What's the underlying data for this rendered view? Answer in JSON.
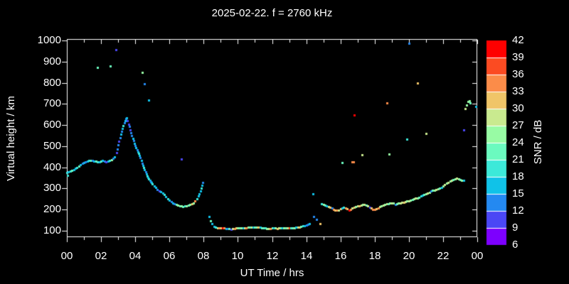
{
  "colors": {
    "background": "#000000",
    "foreground": "#ffffff"
  },
  "chart_data": {
    "type": "scatter",
    "title": "2025-02-22. f = 2760 kHz",
    "grid": false,
    "x_axis": {
      "label": "UT Time / hrs",
      "tick_labels": [
        "00",
        "02",
        "04",
        "06",
        "08",
        "10",
        "12",
        "14",
        "16",
        "18",
        "20",
        "22",
        "00"
      ],
      "tick_hours": [
        0,
        2,
        4,
        6,
        8,
        10,
        12,
        14,
        16,
        18,
        20,
        22,
        24
      ],
      "minor_tick_hours": [
        1,
        3,
        5,
        7,
        9,
        11,
        13,
        15,
        17,
        19,
        21,
        23
      ],
      "range_hours": [
        0,
        24
      ]
    },
    "y_axis": {
      "label": "Virtual height / km",
      "tick_values": [
        1000,
        900,
        800,
        700,
        600,
        500,
        400,
        300,
        200,
        100
      ],
      "range_km": [
        100,
        1000
      ]
    },
    "colorbar": {
      "label": "SNR / dB",
      "min_db": 6,
      "max_db": 42,
      "step_db": 3,
      "tick_labels": [
        42,
        39,
        36,
        33,
        30,
        27,
        24,
        21,
        18,
        15,
        12,
        9,
        6
      ],
      "colors_low_to_high": [
        "#7d00fe",
        "#4b47f5",
        "#2489f1",
        "#10c2e8",
        "#3ce9d9",
        "#6bfabf",
        "#98fba4",
        "#c9ea8f",
        "#f0c568",
        "#fb8c49",
        "#fb4b22",
        "#fe0000"
      ]
    },
    "point_fields": [
      "ut_hours",
      "virtual_height_km",
      "snr_db"
    ],
    "points": [
      [
        0.0,
        375,
        19
      ],
      [
        0.05,
        362,
        19
      ],
      [
        0.1,
        378,
        16
      ],
      [
        0.2,
        382,
        19
      ],
      [
        0.3,
        386,
        22
      ],
      [
        0.4,
        390,
        16
      ],
      [
        0.5,
        395,
        16
      ],
      [
        0.6,
        400,
        19
      ],
      [
        0.7,
        406,
        22
      ],
      [
        0.8,
        412,
        16
      ],
      [
        0.9,
        418,
        13
      ],
      [
        1.0,
        424,
        16
      ],
      [
        1.1,
        427,
        13
      ],
      [
        1.2,
        429,
        16
      ],
      [
        1.3,
        431,
        19
      ],
      [
        1.4,
        432,
        22
      ],
      [
        1.5,
        432,
        13
      ],
      [
        1.6,
        430,
        16
      ],
      [
        1.7,
        428,
        22
      ],
      [
        1.8,
        427,
        19
      ],
      [
        1.9,
        427,
        16
      ],
      [
        2.0,
        429,
        22
      ],
      [
        2.1,
        431,
        16
      ],
      [
        2.2,
        428,
        13
      ],
      [
        2.3,
        425,
        10
      ],
      [
        2.4,
        428,
        16
      ],
      [
        2.5,
        432,
        19
      ],
      [
        2.6,
        437,
        25
      ],
      [
        2.7,
        443,
        13
      ],
      [
        2.8,
        450,
        16
      ],
      [
        2.9,
        470,
        10
      ],
      [
        2.95,
        487,
        13
      ],
      [
        3.0,
        505,
        13
      ],
      [
        3.05,
        522,
        10
      ],
      [
        3.1,
        540,
        13
      ],
      [
        3.15,
        556,
        16
      ],
      [
        3.2,
        570,
        13
      ],
      [
        3.25,
        584,
        16
      ],
      [
        3.3,
        598,
        19
      ],
      [
        3.35,
        612,
        13
      ],
      [
        3.4,
        622,
        16
      ],
      [
        3.45,
        630,
        13
      ],
      [
        3.5,
        634,
        16
      ],
      [
        3.55,
        620,
        10
      ],
      [
        3.6,
        605,
        10
      ],
      [
        3.65,
        592,
        13
      ],
      [
        3.7,
        578,
        10
      ],
      [
        3.75,
        565,
        13
      ],
      [
        3.8,
        550,
        13
      ],
      [
        3.85,
        538,
        16
      ],
      [
        3.9,
        525,
        13
      ],
      [
        3.95,
        513,
        16
      ],
      [
        4.0,
        502,
        13
      ],
      [
        4.05,
        492,
        16
      ],
      [
        4.1,
        483,
        13
      ],
      [
        4.15,
        474,
        16
      ],
      [
        4.2,
        465,
        19
      ],
      [
        4.25,
        455,
        16
      ],
      [
        4.3,
        445,
        13
      ],
      [
        4.35,
        432,
        16
      ],
      [
        4.4,
        420,
        13
      ],
      [
        4.45,
        410,
        16
      ],
      [
        4.5,
        400,
        19
      ],
      [
        4.55,
        390,
        16
      ],
      [
        4.6,
        380,
        13
      ],
      [
        4.65,
        370,
        16
      ],
      [
        4.7,
        360,
        19
      ],
      [
        4.75,
        352,
        16
      ],
      [
        4.8,
        345,
        19
      ],
      [
        4.85,
        338,
        16
      ],
      [
        4.9,
        332,
        13
      ],
      [
        4.95,
        327,
        16
      ],
      [
        5.0,
        322,
        19
      ],
      [
        5.1,
        313,
        16
      ],
      [
        5.2,
        304,
        16
      ],
      [
        5.3,
        296,
        13
      ],
      [
        5.4,
        289,
        10
      ],
      [
        5.5,
        284,
        16
      ],
      [
        5.6,
        277,
        16
      ],
      [
        5.7,
        270,
        19
      ],
      [
        5.8,
        261,
        16
      ],
      [
        5.9,
        252,
        19
      ],
      [
        6.0,
        245,
        16
      ],
      [
        6.1,
        238,
        13
      ],
      [
        6.2,
        232,
        16
      ],
      [
        6.3,
        228,
        13
      ],
      [
        6.4,
        224,
        22
      ],
      [
        6.5,
        221,
        25
      ],
      [
        6.6,
        218,
        22
      ],
      [
        6.7,
        216,
        25
      ],
      [
        6.8,
        215,
        22
      ],
      [
        6.9,
        217,
        19
      ],
      [
        7.0,
        219,
        25
      ],
      [
        7.1,
        221,
        22
      ],
      [
        7.2,
        224,
        25
      ],
      [
        7.3,
        228,
        31
      ],
      [
        7.4,
        232,
        25
      ],
      [
        7.5,
        242,
        34
      ],
      [
        7.6,
        252,
        19
      ],
      [
        7.7,
        263,
        16
      ],
      [
        7.75,
        274,
        16
      ],
      [
        7.8,
        287,
        16
      ],
      [
        7.85,
        300,
        19
      ],
      [
        7.9,
        315,
        16
      ],
      [
        7.95,
        330,
        13
      ],
      [
        8.3,
        168,
        16
      ],
      [
        8.4,
        148,
        22
      ],
      [
        8.5,
        132,
        16
      ],
      [
        8.6,
        120,
        16
      ],
      [
        8.7,
        117,
        19
      ],
      [
        8.8,
        115,
        28
      ],
      [
        8.9,
        114,
        34
      ],
      [
        9.0,
        113,
        31
      ],
      [
        9.1,
        112,
        40
      ],
      [
        9.2,
        113,
        34
      ],
      [
        9.3,
        111,
        16
      ],
      [
        9.4,
        110,
        13
      ],
      [
        9.5,
        109,
        22
      ],
      [
        9.6,
        108,
        10
      ],
      [
        9.7,
        109,
        28
      ],
      [
        9.8,
        110,
        34
      ],
      [
        9.9,
        112,
        31
      ],
      [
        10.0,
        113,
        25
      ],
      [
        10.1,
        114,
        22
      ],
      [
        10.2,
        113,
        25
      ],
      [
        10.3,
        112,
        16
      ],
      [
        10.4,
        113,
        28
      ],
      [
        10.5,
        115,
        34
      ],
      [
        10.6,
        116,
        25
      ],
      [
        10.7,
        117,
        22
      ],
      [
        10.8,
        118,
        28
      ],
      [
        10.9,
        117,
        16
      ],
      [
        11.0,
        116,
        22
      ],
      [
        11.1,
        117,
        25
      ],
      [
        11.2,
        118,
        31
      ],
      [
        11.3,
        116,
        16
      ],
      [
        11.4,
        114,
        22
      ],
      [
        11.5,
        113,
        22
      ],
      [
        11.6,
        112,
        19
      ],
      [
        11.7,
        111,
        25
      ],
      [
        11.8,
        110,
        28
      ],
      [
        11.9,
        111,
        34
      ],
      [
        12.0,
        112,
        22
      ],
      [
        12.1,
        113,
        16
      ],
      [
        12.2,
        112,
        25
      ],
      [
        12.3,
        111,
        31
      ],
      [
        12.4,
        112,
        28
      ],
      [
        12.5,
        113,
        22
      ],
      [
        12.6,
        112,
        16
      ],
      [
        12.7,
        113,
        25
      ],
      [
        12.8,
        114,
        22
      ],
      [
        12.9,
        113,
        28
      ],
      [
        13.0,
        112,
        37
      ],
      [
        13.1,
        113,
        19
      ],
      [
        13.2,
        114,
        22
      ],
      [
        13.3,
        115,
        25
      ],
      [
        13.4,
        116,
        16
      ],
      [
        13.5,
        117,
        28
      ],
      [
        13.6,
        118,
        31
      ],
      [
        13.7,
        120,
        22
      ],
      [
        13.8,
        122,
        19
      ],
      [
        13.9,
        124,
        16
      ],
      [
        14.0,
        126,
        13
      ],
      [
        14.1,
        130,
        13
      ],
      [
        14.2,
        134,
        16
      ],
      [
        14.4,
        276,
        16
      ],
      [
        14.45,
        167,
        13
      ],
      [
        14.6,
        154,
        13
      ],
      [
        14.8,
        133,
        31
      ],
      [
        14.9,
        228,
        19
      ],
      [
        15.0,
        225,
        25
      ],
      [
        15.1,
        221,
        22
      ],
      [
        15.2,
        218,
        16
      ],
      [
        15.3,
        214,
        28
      ],
      [
        15.4,
        211,
        31
      ],
      [
        15.5,
        206,
        13
      ],
      [
        15.6,
        201,
        34
      ],
      [
        15.7,
        197,
        31
      ],
      [
        15.8,
        196,
        34
      ],
      [
        15.9,
        199,
        28
      ],
      [
        16.0,
        204,
        31
      ],
      [
        16.1,
        209,
        16
      ],
      [
        16.2,
        212,
        19
      ],
      [
        16.3,
        208,
        34
      ],
      [
        16.4,
        204,
        31
      ],
      [
        16.5,
        198,
        40
      ],
      [
        16.6,
        202,
        34
      ],
      [
        16.7,
        207,
        28
      ],
      [
        16.8,
        211,
        31
      ],
      [
        16.9,
        214,
        25
      ],
      [
        17.0,
        216,
        28
      ],
      [
        17.1,
        219,
        31
      ],
      [
        17.2,
        222,
        28
      ],
      [
        17.3,
        224,
        25
      ],
      [
        17.4,
        223,
        28
      ],
      [
        17.5,
        221,
        22
      ],
      [
        17.6,
        218,
        28
      ],
      [
        17.7,
        212,
        10
      ],
      [
        17.8,
        207,
        31
      ],
      [
        17.9,
        202,
        34
      ],
      [
        18.0,
        200,
        34
      ],
      [
        18.1,
        204,
        31
      ],
      [
        18.2,
        209,
        34
      ],
      [
        18.3,
        215,
        28
      ],
      [
        18.4,
        219,
        25
      ],
      [
        18.5,
        222,
        28
      ],
      [
        18.6,
        225,
        25
      ],
      [
        18.7,
        227,
        28
      ],
      [
        18.8,
        229,
        22
      ],
      [
        18.9,
        231,
        25
      ],
      [
        19.0,
        232,
        28
      ],
      [
        19.1,
        230,
        25
      ],
      [
        19.2,
        224,
        13
      ],
      [
        19.3,
        227,
        22
      ],
      [
        19.4,
        230,
        25
      ],
      [
        19.5,
        232,
        28
      ],
      [
        19.6,
        234,
        28
      ],
      [
        19.7,
        236,
        31
      ],
      [
        19.8,
        238,
        28
      ],
      [
        19.9,
        240,
        25
      ],
      [
        20.0,
        242,
        28
      ],
      [
        20.1,
        245,
        25
      ],
      [
        20.2,
        248,
        22
      ],
      [
        20.3,
        250,
        25
      ],
      [
        20.4,
        253,
        28
      ],
      [
        20.5,
        256,
        25
      ],
      [
        20.6,
        259,
        22
      ],
      [
        20.7,
        263,
        19
      ],
      [
        20.8,
        267,
        16
      ],
      [
        20.9,
        270,
        22
      ],
      [
        21.0,
        273,
        25
      ],
      [
        21.1,
        277,
        28
      ],
      [
        21.2,
        281,
        25
      ],
      [
        21.3,
        288,
        13
      ],
      [
        21.4,
        290,
        22
      ],
      [
        21.5,
        293,
        25
      ],
      [
        21.6,
        296,
        28
      ],
      [
        21.7,
        299,
        25
      ],
      [
        21.8,
        303,
        22
      ],
      [
        21.9,
        306,
        16
      ],
      [
        22.0,
        311,
        25
      ],
      [
        22.1,
        317,
        28
      ],
      [
        22.2,
        324,
        25
      ],
      [
        22.3,
        330,
        28
      ],
      [
        22.4,
        334,
        25
      ],
      [
        22.5,
        338,
        28
      ],
      [
        22.6,
        342,
        22
      ],
      [
        22.7,
        345,
        25
      ],
      [
        22.8,
        347,
        28
      ],
      [
        22.9,
        344,
        25
      ],
      [
        23.0,
        341,
        22
      ],
      [
        23.1,
        338,
        25
      ],
      [
        23.2,
        337,
        16
      ],
      [
        1.79,
        872,
        22
      ],
      [
        2.54,
        879,
        22
      ],
      [
        2.87,
        956,
        10
      ],
      [
        4.42,
        849,
        25
      ],
      [
        4.54,
        796,
        13
      ],
      [
        4.79,
        719,
        16
      ],
      [
        6.7,
        440,
        10
      ],
      [
        16.1,
        424,
        22
      ],
      [
        16.68,
        427,
        34
      ],
      [
        16.76,
        426,
        34
      ],
      [
        16.8,
        648,
        40
      ],
      [
        17.26,
        458,
        28
      ],
      [
        18.7,
        703,
        34
      ],
      [
        18.84,
        464,
        25
      ],
      [
        19.88,
        532,
        19
      ],
      [
        20.0,
        985,
        13
      ],
      [
        20.5,
        800,
        31
      ],
      [
        21.0,
        560,
        28
      ],
      [
        23.2,
        578,
        10
      ],
      [
        23.3,
        678,
        28
      ],
      [
        23.38,
        696,
        25
      ],
      [
        23.46,
        710,
        25
      ],
      [
        23.54,
        716,
        25
      ],
      [
        23.6,
        706,
        22
      ],
      [
        23.92,
        687,
        16
      ]
    ]
  }
}
